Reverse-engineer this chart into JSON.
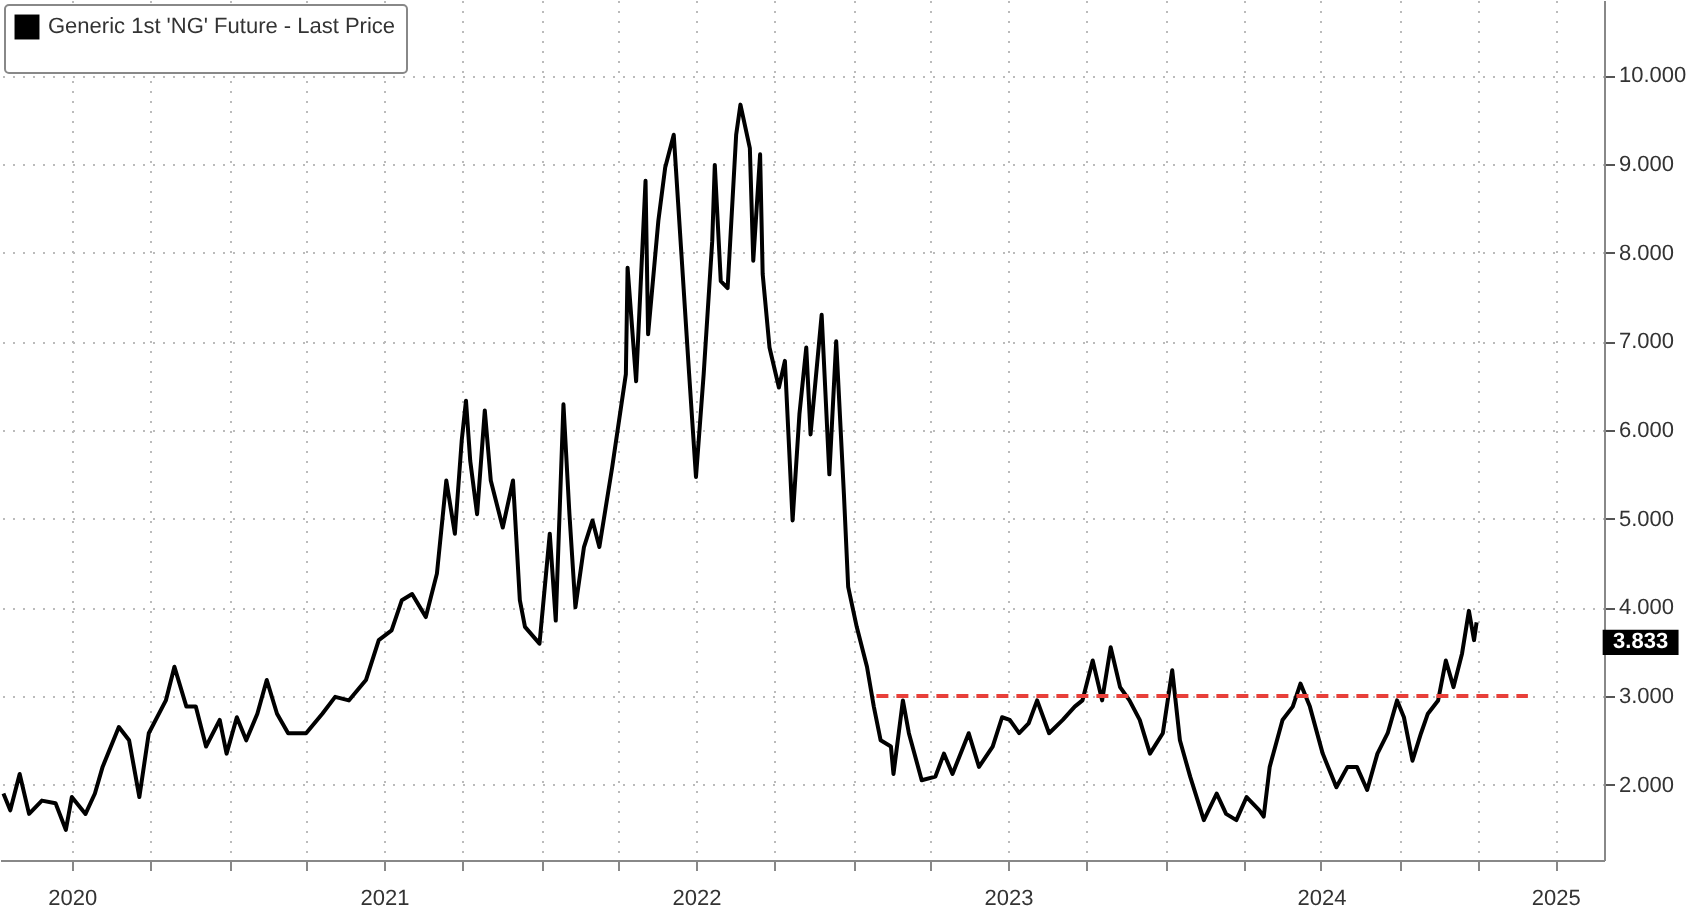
{
  "chart_data": {
    "type": "line",
    "legend": "top left",
    "grid": true,
    "xlim": [
      "2020-04-08",
      "2025-05-28"
    ],
    "xticks": [
      {
        "value": "2020-07-01",
        "label": "2020"
      },
      {
        "value": "2020-10-01",
        "label": null
      },
      {
        "value": "2021-01-01",
        "label": null
      },
      {
        "value": "2021-04-01",
        "label": null
      },
      {
        "value": "2021-07-01",
        "label": "2021"
      },
      {
        "value": "2021-10-01",
        "label": null
      },
      {
        "value": "2022-01-01",
        "label": null
      },
      {
        "value": "2022-04-01",
        "label": null
      },
      {
        "value": "2022-07-01",
        "label": "2022"
      },
      {
        "value": "2022-10-01",
        "label": null
      },
      {
        "value": "2023-01-01",
        "label": null
      },
      {
        "value": "2023-04-01",
        "label": null
      },
      {
        "value": "2023-07-01",
        "label": "2023"
      },
      {
        "value": "2023-10-01",
        "label": null
      },
      {
        "value": "2024-01-01",
        "label": null
      },
      {
        "value": "2024-04-01",
        "label": null
      },
      {
        "value": "2024-07-01",
        "label": "2024"
      },
      {
        "value": "2024-10-01",
        "label": null
      },
      {
        "value": "2025-01-01",
        "label": null
      },
      {
        "value": "2025-04-01",
        "label": "2025"
      }
    ],
    "ylim": [
      1.15,
      10.85
    ],
    "yticks": [
      {
        "value": 2,
        "label": "2.000"
      },
      {
        "value": 3,
        "label": "3.000"
      },
      {
        "value": 4,
        "label": "4.000"
      },
      {
        "value": 5,
        "label": "5.000"
      },
      {
        "value": 6,
        "label": "6.000"
      },
      {
        "value": 7,
        "label": "7.000"
      },
      {
        "value": 8,
        "label": "8.000"
      },
      {
        "value": 9,
        "label": "9.000"
      },
      {
        "value": 10,
        "label": "10.000"
      }
    ],
    "annotations": [
      "3.833"
    ],
    "series": [
      {
        "name": "Generic 1st 'NG' Future - Last Price",
        "color": "#000000",
        "x": [
          "2020-04-12",
          "2020-04-20",
          "2020-05-01",
          "2020-05-12",
          "2020-05-27",
          "2020-06-12",
          "2020-06-24",
          "2020-07-01",
          "2020-07-17",
          "2020-07-28",
          "2020-08-06",
          "2020-08-25",
          "2020-09-06",
          "2020-09-18",
          "2020-09-29",
          "2020-10-19",
          "2020-10-29",
          "2020-11-12",
          "2020-11-23",
          "2020-12-05",
          "2020-12-21",
          "2020-12-29",
          "2021-01-10",
          "2021-01-21",
          "2021-02-03",
          "2021-02-14",
          "2021-02-26",
          "2021-03-11",
          "2021-04-01",
          "2021-04-20",
          "2021-05-05",
          "2021-05-21",
          "2021-06-10",
          "2021-06-25",
          "2021-07-10",
          "2021-07-22",
          "2021-08-03",
          "2021-08-19",
          "2021-09-01",
          "2021-09-12",
          "2021-09-22",
          "2021-09-30",
          "2021-10-05",
          "2021-10-10",
          "2021-10-18",
          "2021-10-27",
          "2021-11-03",
          "2021-11-17",
          "2021-11-29",
          "2021-12-07",
          "2021-12-13",
          "2021-12-30",
          "2022-01-11",
          "2022-01-18",
          "2022-01-27",
          "2022-02-03",
          "2022-02-10",
          "2022-02-20",
          "2022-03-02",
          "2022-03-10",
          "2022-03-25",
          "2022-04-10",
          "2022-04-12",
          "2022-04-22",
          "2022-05-03",
          "2022-05-06",
          "2022-05-18",
          "2022-05-26",
          "2022-06-05",
          "2022-06-10",
          "2022-06-23",
          "2022-07-01",
          "2022-07-10",
          "2022-07-20",
          "2022-07-23",
          "2022-07-30",
          "2022-08-07",
          "2022-08-17",
          "2022-08-22",
          "2022-09-02",
          "2022-09-06",
          "2022-09-14",
          "2022-09-17",
          "2022-09-25",
          "2022-10-06",
          "2022-10-13",
          "2022-10-22",
          "2022-10-30",
          "2022-11-07",
          "2022-11-12",
          "2022-11-25",
          "2022-12-04",
          "2022-12-12",
          "2022-12-21",
          "2022-12-26",
          "2023-01-05",
          "2023-01-17",
          "2023-01-25",
          "2023-02-02",
          "2023-02-14",
          "2023-02-17",
          "2023-02-28",
          "2023-03-07",
          "2023-03-22",
          "2023-04-07",
          "2023-04-17",
          "2023-04-27",
          "2023-05-16",
          "2023-05-28",
          "2023-06-13",
          "2023-06-24",
          "2023-07-03",
          "2023-07-14",
          "2023-07-25",
          "2023-08-04",
          "2023-08-18",
          "2023-09-03",
          "2023-09-17",
          "2023-09-26",
          "2023-10-08",
          "2023-10-19",
          "2023-10-29",
          "2023-11-09",
          "2023-11-20",
          "2023-12-02",
          "2023-12-14",
          "2023-12-29",
          "2024-01-09",
          "2024-01-18",
          "2024-01-30",
          "2024-02-15",
          "2024-03-01",
          "2024-03-12",
          "2024-03-24",
          "2024-04-05",
          "2024-04-20",
          "2024-04-25",
          "2024-05-02",
          "2024-05-17",
          "2024-05-29",
          "2024-06-07",
          "2024-06-18",
          "2024-07-03",
          "2024-07-19",
          "2024-08-01",
          "2024-08-12",
          "2024-08-24",
          "2024-09-05",
          "2024-09-17",
          "2024-09-28",
          "2024-10-06",
          "2024-10-16",
          "2024-10-26",
          "2024-11-03",
          "2024-11-15",
          "2024-11-24",
          "2024-12-03",
          "2024-12-13",
          "2024-12-21",
          "2024-12-27",
          "2024-12-30"
        ],
        "values": [
          1.9,
          1.71,
          2.12,
          1.67,
          1.82,
          1.79,
          1.49,
          1.86,
          1.67,
          1.9,
          2.2,
          2.65,
          2.5,
          1.86,
          2.58,
          2.95,
          3.33,
          2.88,
          2.88,
          2.43,
          2.73,
          2.35,
          2.76,
          2.5,
          2.8,
          3.18,
          2.8,
          2.58,
          2.58,
          2.8,
          2.99,
          2.95,
          3.18,
          3.63,
          3.74,
          4.08,
          4.15,
          3.89,
          4.38,
          5.43,
          4.83,
          5.88,
          6.33,
          5.65,
          5.05,
          6.22,
          5.43,
          4.9,
          5.43,
          4.08,
          3.78,
          3.59,
          4.83,
          3.85,
          6.29,
          5.05,
          4.0,
          4.68,
          4.98,
          4.68,
          5.58,
          6.63,
          7.83,
          6.55,
          8.81,
          7.08,
          8.36,
          8.96,
          9.33,
          8.58,
          6.63,
          5.47,
          6.63,
          8.13,
          8.99,
          7.68,
          7.6,
          9.33,
          9.67,
          9.18,
          7.91,
          9.11,
          7.76,
          6.93,
          6.48,
          6.78,
          4.98,
          6.18,
          6.93,
          5.95,
          7.3,
          5.5,
          7.0,
          5.28,
          4.23,
          3.78,
          3.33,
          2.88,
          2.5,
          2.43,
          2.12,
          2.95,
          2.58,
          2.05,
          2.09,
          2.35,
          2.12,
          2.58,
          2.2,
          2.43,
          2.76,
          2.73,
          2.58,
          2.69,
          2.95,
          2.58,
          2.73,
          2.88,
          2.95,
          3.4,
          2.95,
          3.55,
          3.1,
          2.95,
          2.73,
          2.35,
          2.58,
          3.29,
          2.5,
          2.09,
          1.6,
          1.9,
          1.67,
          1.6,
          1.86,
          1.71,
          1.64,
          2.2,
          2.73,
          2.88,
          3.14,
          2.88,
          2.35,
          1.97,
          2.2,
          2.2,
          1.94,
          2.35,
          2.58,
          2.95,
          2.76,
          2.27,
          2.58,
          2.8,
          2.95,
          3.4,
          3.1,
          3.48,
          3.96,
          3.63,
          3.83
        ]
      },
      {
        "type": "line",
        "line_style": "dashed",
        "color": "#e8403a",
        "x": [
          "2023-01-28",
          "2025-02-28"
        ],
        "values": [
          3,
          3
        ]
      }
    ]
  }
}
